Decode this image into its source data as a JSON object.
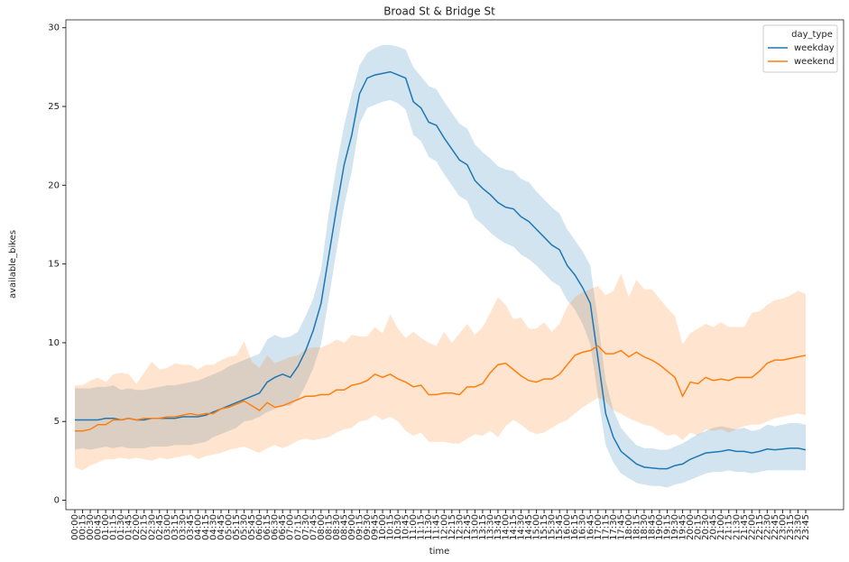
{
  "chart_data": {
    "type": "line",
    "title": "Broad St & Bridge St",
    "x_label": "time",
    "y_label": "available_bikes",
    "legend_title": "day_type",
    "legend": "upper right",
    "categories": [
      "00:00",
      "00:15",
      "00:30",
      "00:45",
      "01:00",
      "01:15",
      "01:30",
      "01:45",
      "02:00",
      "02:15",
      "02:30",
      "02:45",
      "03:00",
      "03:15",
      "03:30",
      "03:45",
      "04:00",
      "04:15",
      "04:30",
      "04:45",
      "05:00",
      "05:15",
      "05:30",
      "05:45",
      "06:00",
      "06:15",
      "06:30",
      "06:45",
      "07:00",
      "07:15",
      "07:30",
      "07:45",
      "08:00",
      "08:15",
      "08:30",
      "08:45",
      "09:00",
      "09:15",
      "09:30",
      "09:45",
      "10:00",
      "10:15",
      "10:30",
      "10:45",
      "11:00",
      "11:15",
      "11:30",
      "11:45",
      "12:00",
      "12:15",
      "12:30",
      "12:45",
      "13:00",
      "13:15",
      "13:30",
      "13:45",
      "14:00",
      "14:15",
      "14:30",
      "14:45",
      "15:00",
      "15:15",
      "15:30",
      "15:45",
      "16:00",
      "16:15",
      "16:30",
      "16:45",
      "17:00",
      "17:15",
      "17:30",
      "17:45",
      "18:00",
      "18:15",
      "18:30",
      "18:45",
      "19:00",
      "19:15",
      "19:30",
      "19:45",
      "20:00",
      "20:15",
      "20:30",
      "20:45",
      "21:00",
      "21:15",
      "21:30",
      "21:45",
      "22:00",
      "22:15",
      "22:30",
      "22:45",
      "23:00",
      "23:15",
      "23:30",
      "23:45"
    ],
    "series": [
      {
        "name": "weekday",
        "color": "#1f77b4",
        "values": [
          5.1,
          5.1,
          5.1,
          5.1,
          5.2,
          5.2,
          5.1,
          5.2,
          5.1,
          5.1,
          5.2,
          5.2,
          5.2,
          5.2,
          5.3,
          5.3,
          5.3,
          5.4,
          5.6,
          5.8,
          6.0,
          6.2,
          6.4,
          6.6,
          6.8,
          7.5,
          7.8,
          8.0,
          7.8,
          8.5,
          9.5,
          10.8,
          12.5,
          15.5,
          18.5,
          21.3,
          23.2,
          25.8,
          26.8,
          27.0,
          27.1,
          27.2,
          27.0,
          26.8,
          25.3,
          24.9,
          24.0,
          23.8,
          23.0,
          22.3,
          21.6,
          21.3,
          20.3,
          19.8,
          19.4,
          18.9,
          18.6,
          18.5,
          18.0,
          17.7,
          17.2,
          16.7,
          16.2,
          15.9,
          14.9,
          14.3,
          13.5,
          12.5,
          9.0,
          5.5,
          4.0,
          3.1,
          2.7,
          2.3,
          2.1,
          2.05,
          2.0,
          2.0,
          2.2,
          2.3,
          2.6,
          2.8,
          3.0,
          3.05,
          3.1,
          3.2,
          3.1,
          3.1,
          3.0,
          3.1,
          3.25,
          3.2,
          3.25,
          3.3,
          3.3,
          3.2
        ],
        "lower": [
          3.2,
          3.3,
          3.2,
          3.3,
          3.4,
          3.3,
          3.4,
          3.3,
          3.3,
          3.3,
          3.4,
          3.4,
          3.4,
          3.5,
          3.5,
          3.5,
          3.6,
          3.7,
          4.0,
          4.2,
          4.4,
          4.6,
          5.0,
          5.1,
          5.3,
          5.6,
          5.8,
          6.0,
          6.0,
          6.4,
          7.3,
          8.4,
          9.9,
          12.8,
          15.8,
          18.7,
          20.9,
          23.9,
          24.9,
          25.1,
          25.3,
          25.4,
          25.2,
          24.8,
          23.2,
          22.8,
          21.8,
          21.5,
          20.7,
          20.0,
          19.3,
          19.0,
          17.9,
          17.5,
          17.0,
          16.6,
          16.3,
          16.1,
          15.6,
          15.3,
          14.9,
          14.4,
          13.9,
          13.6,
          12.7,
          12.1,
          11.2,
          9.9,
          6.6,
          3.5,
          2.4,
          1.7,
          1.4,
          1.1,
          1.0,
          0.9,
          0.9,
          0.8,
          1.0,
          1.1,
          1.3,
          1.5,
          1.7,
          1.8,
          1.8,
          1.9,
          1.8,
          1.8,
          1.7,
          1.8,
          1.9,
          1.9,
          1.9,
          1.9,
          1.9,
          1.9
        ],
        "upper": [
          7.1,
          7.1,
          7.1,
          7.2,
          7.2,
          7.3,
          7.0,
          7.1,
          7.0,
          7.0,
          7.1,
          7.2,
          7.3,
          7.3,
          7.4,
          7.5,
          7.6,
          7.8,
          8.0,
          8.2,
          8.5,
          8.7,
          8.9,
          9.1,
          9.3,
          10.2,
          10.5,
          10.3,
          10.4,
          10.7,
          11.7,
          12.8,
          14.6,
          18.2,
          21.2,
          23.8,
          25.8,
          27.6,
          28.4,
          28.7,
          28.9,
          28.9,
          28.8,
          28.6,
          27.5,
          26.9,
          26.3,
          26.1,
          25.3,
          24.6,
          23.9,
          23.6,
          22.6,
          22.1,
          21.7,
          21.2,
          21.0,
          20.9,
          20.4,
          20.2,
          19.6,
          19.1,
          18.6,
          18.2,
          17.2,
          16.5,
          15.8,
          14.9,
          11.4,
          7.6,
          5.7,
          4.6,
          4.0,
          3.5,
          3.3,
          3.3,
          3.2,
          3.2,
          3.4,
          3.6,
          3.9,
          4.2,
          4.4,
          4.6,
          4.7,
          4.6,
          4.5,
          4.6,
          4.4,
          4.5,
          4.8,
          4.7,
          4.8,
          4.9,
          4.9,
          4.8
        ]
      },
      {
        "name": "weekend",
        "color": "#ff7f0e",
        "values": [
          4.4,
          4.4,
          4.5,
          4.8,
          4.8,
          5.1,
          5.1,
          5.2,
          5.1,
          5.2,
          5.2,
          5.2,
          5.3,
          5.3,
          5.4,
          5.5,
          5.4,
          5.5,
          5.5,
          5.8,
          5.9,
          6.1,
          6.3,
          6.0,
          5.7,
          6.2,
          5.9,
          6.0,
          6.2,
          6.4,
          6.6,
          6.6,
          6.7,
          6.7,
          7.0,
          7.0,
          7.3,
          7.4,
          7.6,
          8.0,
          7.8,
          8.0,
          7.7,
          7.5,
          7.2,
          7.3,
          6.7,
          6.7,
          6.8,
          6.8,
          6.7,
          7.2,
          7.2,
          7.4,
          8.1,
          8.6,
          8.7,
          8.3,
          7.9,
          7.6,
          7.5,
          7.7,
          7.7,
          8.0,
          8.6,
          9.2,
          9.4,
          9.5,
          9.8,
          9.3,
          9.3,
          9.5,
          9.1,
          9.4,
          9.1,
          8.9,
          8.6,
          8.2,
          7.8,
          6.6,
          7.5,
          7.4,
          7.8,
          7.6,
          7.7,
          7.6,
          7.8,
          7.8,
          7.8,
          8.2,
          8.7,
          8.9,
          8.9,
          9.0,
          9.1,
          9.2
        ],
        "lower": [
          2.1,
          1.9,
          2.2,
          2.4,
          2.6,
          2.6,
          2.7,
          2.6,
          2.7,
          2.6,
          2.5,
          2.7,
          2.6,
          2.7,
          2.8,
          2.9,
          2.6,
          2.8,
          2.9,
          3.0,
          3.2,
          3.3,
          3.4,
          3.2,
          3.0,
          3.3,
          3.5,
          3.3,
          3.5,
          3.8,
          3.9,
          3.8,
          3.9,
          4.0,
          4.3,
          4.5,
          4.6,
          5.0,
          5.1,
          5.4,
          5.1,
          5.3,
          5.0,
          4.4,
          4.1,
          4.3,
          3.7,
          3.7,
          3.7,
          3.6,
          3.6,
          3.9,
          4.2,
          4.1,
          4.4,
          4.0,
          4.7,
          5.1,
          4.8,
          4.4,
          4.2,
          4.3,
          4.6,
          4.9,
          5.1,
          5.5,
          5.9,
          6.2,
          6.5,
          6.3,
          5.7,
          5.5,
          5.2,
          5.0,
          4.8,
          4.7,
          4.4,
          4.1,
          4.2,
          3.8,
          4.3,
          4.1,
          4.5,
          4.4,
          4.5,
          4.3,
          4.5,
          4.7,
          4.8,
          4.8,
          5.0,
          5.2,
          5.3,
          5.4,
          5.5,
          5.4
        ],
        "upper": [
          7.3,
          7.3,
          7.6,
          7.8,
          7.5,
          8.0,
          8.1,
          8.0,
          7.4,
          8.1,
          8.8,
          8.3,
          8.4,
          8.7,
          8.6,
          8.6,
          8.3,
          8.6,
          8.6,
          8.9,
          9.1,
          9.2,
          10.1,
          8.8,
          8.4,
          9.2,
          8.7,
          8.9,
          9.1,
          9.2,
          9.6,
          9.7,
          9.7,
          9.9,
          10.2,
          10.0,
          10.5,
          10.4,
          10.4,
          11.0,
          10.6,
          11.8,
          10.9,
          10.3,
          10.7,
          10.3,
          10.0,
          9.8,
          10.7,
          10.0,
          10.6,
          11.2,
          10.5,
          11.0,
          11.9,
          12.9,
          12.4,
          11.5,
          11.6,
          10.9,
          10.9,
          11.3,
          10.7,
          11.2,
          12.3,
          12.9,
          13.2,
          13.4,
          13.6,
          13.0,
          13.3,
          14.4,
          12.9,
          14.0,
          13.4,
          13.4,
          12.8,
          12.2,
          11.7,
          9.9,
          10.6,
          10.9,
          11.2,
          11.0,
          11.3,
          11.0,
          11.0,
          11.0,
          11.9,
          12.0,
          12.4,
          12.7,
          12.8,
          13.0,
          13.3,
          13.1
        ]
      }
    ],
    "ylim": [
      -0.6,
      30.5
    ],
    "yticks": [
      0,
      5,
      10,
      15,
      20,
      25,
      30
    ],
    "grid": false
  }
}
